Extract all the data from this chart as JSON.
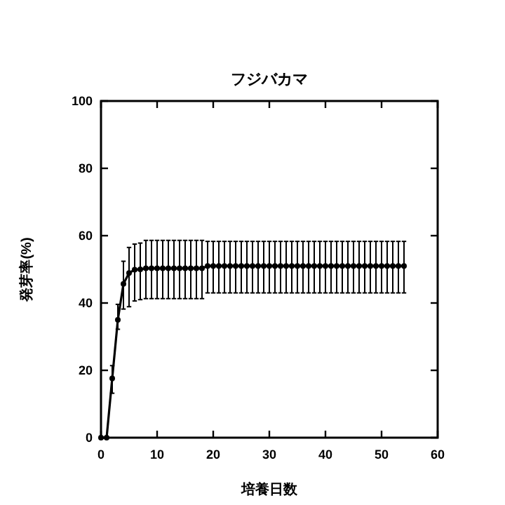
{
  "chart_data": {
    "type": "line",
    "title": "フジバカマ",
    "xlabel": "培養日数",
    "ylabel": "発芽率(%)",
    "xlim": [
      0,
      60
    ],
    "xticks": [
      0,
      10,
      20,
      30,
      40,
      50,
      60
    ],
    "ylim": [
      0,
      100
    ],
    "yticks": [
      0,
      20,
      40,
      60,
      80,
      100
    ],
    "grid": false,
    "marker": "circle",
    "line_style": "solid",
    "x": [
      0,
      1,
      2,
      3,
      4,
      5,
      6,
      7,
      8,
      9,
      10,
      11,
      12,
      13,
      14,
      15,
      16,
      17,
      18,
      19,
      20,
      21,
      22,
      23,
      24,
      25,
      26,
      27,
      28,
      29,
      30,
      31,
      32,
      33,
      34,
      35,
      36,
      37,
      38,
      39,
      40,
      41,
      42,
      43,
      44,
      45,
      46,
      47,
      48,
      49,
      50,
      51,
      52,
      53,
      54
    ],
    "series": [
      {
        "color": "#000000",
        "values": [
          0,
          0,
          17.6,
          35,
          45.7,
          48.9,
          49.9,
          50,
          50.3,
          50.3,
          50.3,
          50.3,
          50.3,
          50.3,
          50.3,
          50.3,
          50.3,
          50.3,
          50.3,
          51,
          51,
          51,
          51,
          51,
          51,
          51,
          51,
          51,
          51,
          51,
          51,
          51,
          51,
          51,
          51,
          51,
          51,
          51,
          51,
          51,
          51,
          51,
          51,
          51,
          51,
          51,
          51,
          51,
          51,
          51,
          51,
          51,
          51,
          51,
          51
        ],
        "errors": [
          null,
          null,
          [
            13.2,
            21.4
          ],
          [
            32.2,
            39.6
          ],
          [
            38.2,
            52.4
          ],
          [
            38.9,
            56.5
          ],
          [
            40.6,
            57.5
          ],
          [
            41,
            57.8
          ],
          [
            41.3,
            58.6
          ],
          [
            41.3,
            58.6
          ],
          [
            41.3,
            58.6
          ],
          [
            41.3,
            58.6
          ],
          [
            41.3,
            58.6
          ],
          [
            41.3,
            58.6
          ],
          [
            41.3,
            58.6
          ],
          [
            41.3,
            58.6
          ],
          [
            41.3,
            58.6
          ],
          [
            41.3,
            58.6
          ],
          [
            41.3,
            58.6
          ],
          [
            43,
            58.3
          ],
          [
            43,
            58.3
          ],
          [
            43,
            58.3
          ],
          [
            43,
            58.3
          ],
          [
            43,
            58.3
          ],
          [
            43,
            58.3
          ],
          [
            43,
            58.3
          ],
          [
            43,
            58.3
          ],
          [
            43,
            58.3
          ],
          [
            43,
            58.3
          ],
          [
            43,
            58.3
          ],
          [
            43,
            58.3
          ],
          [
            43,
            58.3
          ],
          [
            43,
            58.3
          ],
          [
            43,
            58.3
          ],
          [
            43,
            58.3
          ],
          [
            43,
            58.3
          ],
          [
            43,
            58.3
          ],
          [
            43,
            58.3
          ],
          [
            43,
            58.3
          ],
          [
            43,
            58.3
          ],
          [
            43,
            58.3
          ],
          [
            43,
            58.3
          ],
          [
            43,
            58.3
          ],
          [
            43,
            58.3
          ],
          [
            43,
            58.3
          ],
          [
            43,
            58.3
          ],
          [
            43,
            58.3
          ],
          [
            43,
            58.3
          ],
          [
            43,
            58.3
          ],
          [
            43,
            58.3
          ],
          [
            43,
            58.3
          ],
          [
            43,
            58.3
          ],
          [
            43,
            58.3
          ],
          [
            43,
            58.3
          ],
          [
            43,
            58.3
          ]
        ]
      }
    ]
  }
}
